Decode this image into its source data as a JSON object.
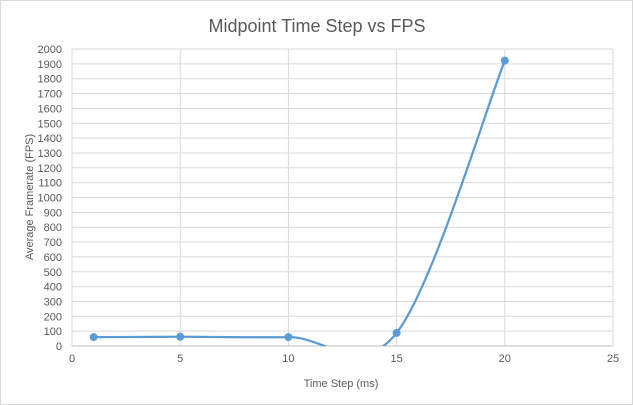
{
  "chart_data": {
    "type": "scatter",
    "title": "Midpoint Time Step vs FPS",
    "xlabel": "Time Step (ms)",
    "ylabel": "Average Framerate (FPS)",
    "xlim": [
      0,
      25
    ],
    "ylim": [
      0,
      2000
    ],
    "x_ticks": [
      0,
      5,
      10,
      15,
      20,
      25
    ],
    "y_ticks": [
      0,
      100,
      200,
      300,
      400,
      500,
      600,
      700,
      800,
      900,
      1000,
      1100,
      1200,
      1300,
      1400,
      1500,
      1600,
      1700,
      1800,
      1900,
      2000
    ],
    "grid": true,
    "smooth": true,
    "legend": "none",
    "color": "#5b9bd5",
    "series": [
      {
        "x": [
          1,
          5,
          10,
          15,
          20
        ],
        "y": [
          60,
          62,
          60,
          88,
          1922
        ]
      }
    ]
  }
}
